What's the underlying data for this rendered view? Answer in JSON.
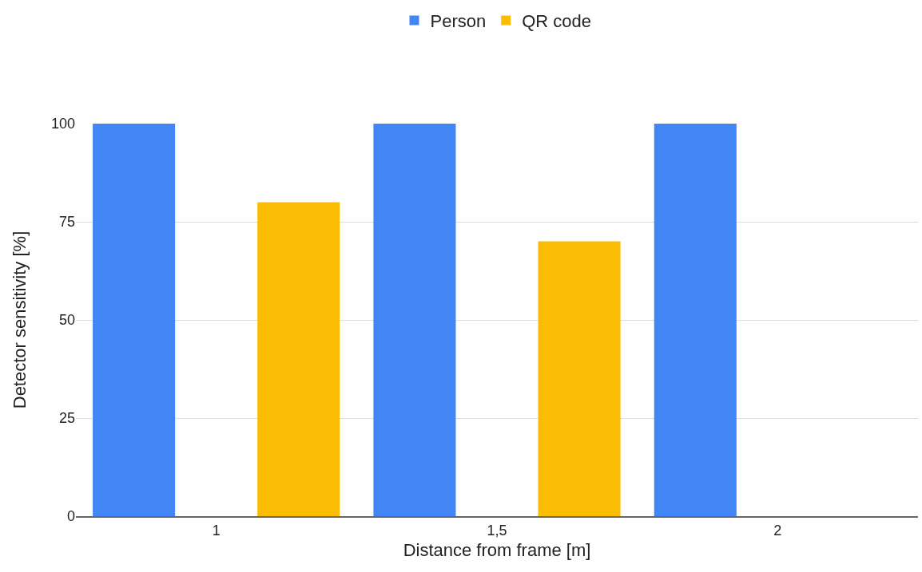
{
  "chart_data": {
    "type": "bar",
    "xlabel": "Distance from frame [m]",
    "ylabel": "Detector sensitivity [%]",
    "categories": [
      "1",
      "1,5",
      "2"
    ],
    "series": [
      {
        "name": "Person",
        "color": "#4285f4",
        "values": [
          100,
          100,
          100
        ]
      },
      {
        "color": "#db4437",
        "values": [
          0,
          0,
          0
        ]
      },
      {
        "name": "QR code",
        "color": "#fbbc04",
        "values": [
          80,
          70,
          0
        ]
      }
    ],
    "ylim": [
      0,
      100
    ],
    "yticks": [
      0,
      25,
      50,
      75,
      100
    ],
    "grid": "y",
    "legend": "top"
  }
}
